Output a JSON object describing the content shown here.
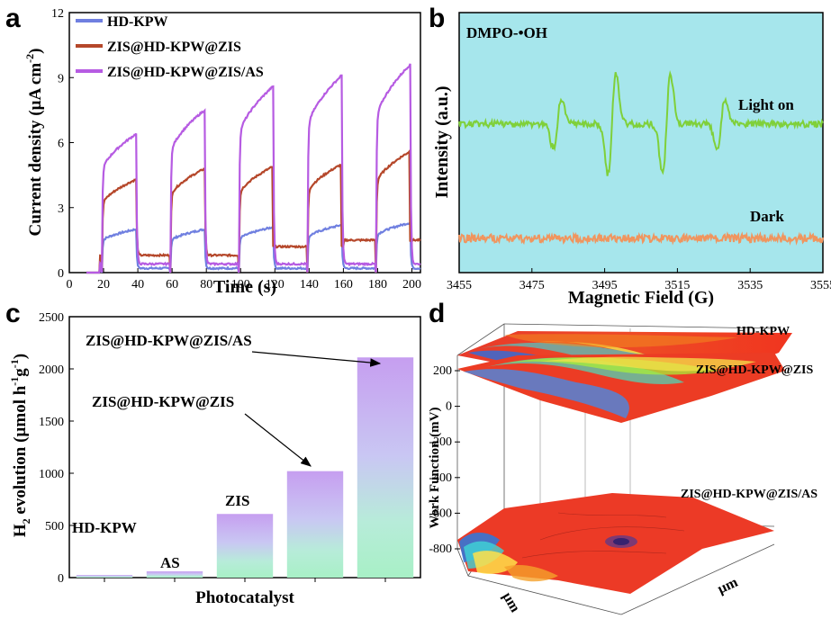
{
  "panels": [
    "a",
    "b",
    "c",
    "d"
  ],
  "chart_data": [
    {
      "panel": "a",
      "type": "line",
      "title": "",
      "xlabel": "Time (s)",
      "ylabel": "Current density (µA cm",
      "ylabel_sup": "-2",
      "ylabel_close": ")",
      "xlim": [
        0,
        205
      ],
      "ylim": [
        0,
        12
      ],
      "xticks": [
        0,
        20,
        40,
        60,
        80,
        100,
        120,
        140,
        160,
        180,
        200
      ],
      "yticks": [
        0,
        3,
        6,
        9,
        12
      ],
      "light_on_cycles": [
        [
          19,
          39
        ],
        [
          59,
          79
        ],
        [
          99,
          119
        ],
        [
          139,
          159
        ],
        [
          179,
          199
        ]
      ],
      "series": [
        {
          "name": "HD-KPW",
          "color": "#6f7fe0",
          "dark": 0.2,
          "peaks": [
            2.0,
            2.0,
            2.1,
            2.2,
            2.3
          ]
        },
        {
          "name": "ZIS@HD-KPW@ZIS",
          "color": "#b5472a",
          "dark": 0.8,
          "peaks": [
            4.3,
            4.8,
            4.9,
            5.0,
            5.6
          ]
        },
        {
          "name": "ZIS@HD-KPW@ZIS/AS",
          "color": "#b65be2",
          "dark": 0.4,
          "peaks": [
            6.4,
            7.5,
            8.6,
            9.1,
            9.6
          ]
        }
      ]
    },
    {
      "panel": "b",
      "type": "line",
      "title": "DMPO-•OH",
      "xlabel": "Magnetic Field (G)",
      "ylabel": "Intensity (a.u.)",
      "xlim": [
        3455,
        3555
      ],
      "xticks": [
        3455,
        3475,
        3495,
        3515,
        3535,
        3555
      ],
      "background": "#a6e6ec",
      "series": [
        {
          "name": "Light on",
          "color": "#7fd03a",
          "baseline": "offset",
          "peak_centers": [
            3482,
            3497,
            3512,
            3527
          ],
          "relative_amplitudes": [
            1,
            2,
            2,
            1
          ]
        },
        {
          "name": "Dark",
          "color": "#f0955e",
          "baseline": "offset",
          "peak_centers": [],
          "relative_amplitudes": []
        }
      ]
    },
    {
      "panel": "c",
      "type": "bar",
      "title": "",
      "xlabel": "Photocatalyst",
      "ylabel": "H",
      "ylabel_sub": "2",
      "ylabel_rest": " evolution (µmol h",
      "ylabel_sup1": "-1",
      "ylabel_g": "g",
      "ylabel_sup2": "-1",
      "ylabel_close": ")",
      "ylim": [
        0,
        2500
      ],
      "yticks": [
        0,
        500,
        1000,
        1500,
        2000,
        2500
      ],
      "categories": [
        "HD-KPW",
        "AS",
        "ZIS",
        "ZIS@HD-KPW@ZIS",
        "ZIS@HD-KPW@ZIS/AS"
      ],
      "values": [
        25,
        60,
        610,
        1020,
        2110
      ],
      "annotations": [
        "HD-KPW",
        "AS",
        "ZIS",
        "ZIS@HD-KPW@ZIS",
        "ZIS@HD-KPW@ZIS/AS"
      ]
    },
    {
      "panel": "d",
      "type": "heatmap",
      "title": "",
      "xlabel": "µm",
      "ylabel": "µm",
      "zlabel": "Work Function (mV)",
      "zticks": [
        200,
        0,
        -200,
        -400,
        -600,
        -800
      ],
      "surfaces": [
        {
          "name": "HD-KPW",
          "level_mV": 220
        },
        {
          "name": "ZIS@HD-KPW@ZIS",
          "level_mV": 60
        },
        {
          "name": "ZIS@HD-KPW@ZIS/AS",
          "level_mV": -740
        }
      ]
    }
  ]
}
